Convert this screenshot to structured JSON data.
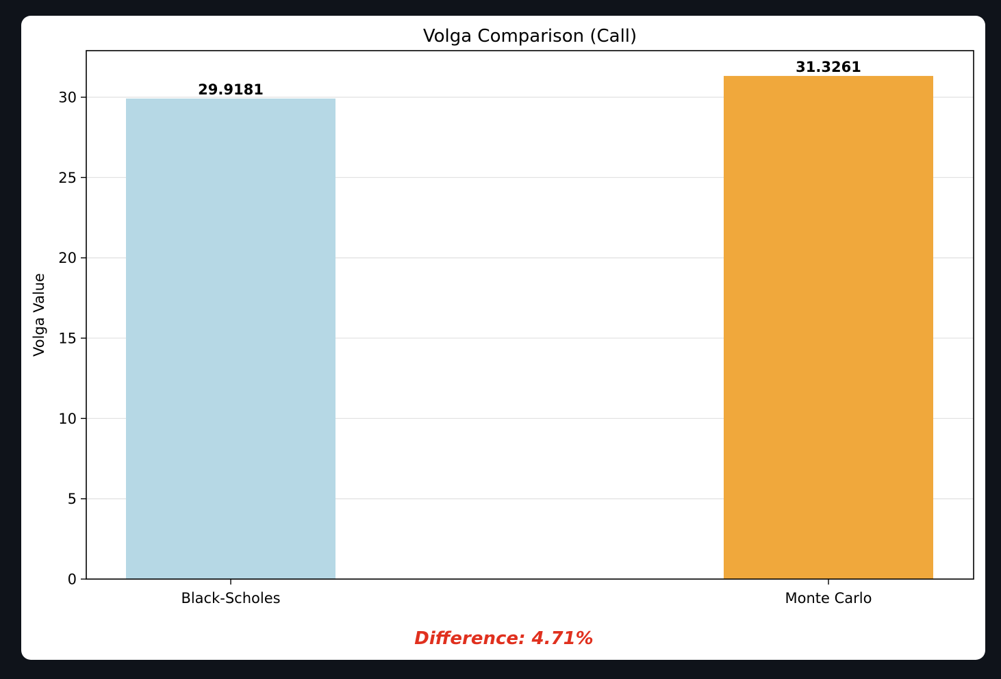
{
  "chart_data": {
    "type": "bar",
    "title": "Volga Comparison (Call)",
    "xlabel": "",
    "ylabel": "Volga Value",
    "categories": [
      "Black-Scholes",
      "Monte Carlo"
    ],
    "values": [
      29.9181,
      31.3261
    ],
    "value_labels": [
      "29.9181",
      "31.3261"
    ],
    "colors": [
      "#b6d8e5",
      "#f0a83c"
    ],
    "ylim": [
      0,
      32.9
    ],
    "yticks": [
      0,
      5,
      10,
      15,
      20,
      25,
      30
    ],
    "grid": "y",
    "annotation": {
      "text": "Difference: 4.71%",
      "color": "#e0301e"
    }
  }
}
